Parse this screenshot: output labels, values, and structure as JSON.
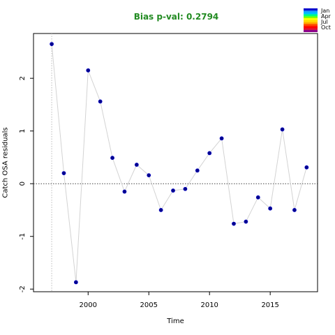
{
  "chart_data": {
    "type": "scatter",
    "title": "Bias p-val: 0.2794",
    "xlabel": "Time",
    "ylabel": "Catch OSA residuals",
    "xlim": [
      1995.5,
      2018.9
    ],
    "ylim": [
      -2.05,
      2.85
    ],
    "xticks": [
      2000,
      2005,
      2010,
      2015
    ],
    "yticks": [
      -2,
      -1,
      0,
      1,
      2
    ],
    "reference_line_y": 0,
    "reference_line_x": 1997,
    "connect_points": true,
    "grid": false,
    "point_color": "#00008b",
    "line_color": "#d3d3d3",
    "title_color": "#228b22",
    "x": [
      1997,
      1998,
      1999,
      2000,
      2001,
      2002,
      2003,
      2004,
      2005,
      2006,
      2007,
      2008,
      2009,
      2010,
      2011,
      2012,
      2013,
      2014,
      2015,
      2016,
      2017,
      2018
    ],
    "y": [
      2.65,
      0.2,
      -1.87,
      2.15,
      1.56,
      0.49,
      -0.15,
      0.36,
      0.16,
      -0.5,
      -0.13,
      -0.1,
      0.25,
      0.58,
      0.86,
      -0.76,
      -0.72,
      -0.26,
      -0.47,
      1.03,
      -0.5,
      0.31
    ]
  },
  "legend": {
    "labels": [
      "Jan",
      "Apr",
      "Jul",
      "Oct"
    ],
    "colors": [
      "#0000cd",
      "#1e90ff",
      "#00bfff",
      "#00ff7f",
      "#7fff00",
      "#ffff00",
      "#ffd700",
      "#ffa500",
      "#ff4500",
      "#ff0000",
      "#dc143c",
      "#8b008b"
    ]
  }
}
